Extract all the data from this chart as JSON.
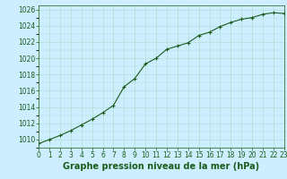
{
  "x": [
    0,
    1,
    2,
    3,
    4,
    5,
    6,
    7,
    8,
    9,
    10,
    11,
    12,
    13,
    14,
    15,
    16,
    17,
    18,
    19,
    20,
    21,
    22,
    23
  ],
  "y": [
    1009.5,
    1010.0,
    1010.5,
    1011.1,
    1011.8,
    1012.5,
    1013.3,
    1014.2,
    1016.5,
    1017.5,
    1019.3,
    1020.0,
    1021.1,
    1021.5,
    1021.9,
    1022.8,
    1023.2,
    1023.9,
    1024.4,
    1024.8,
    1025.0,
    1025.4,
    1025.6,
    1025.5
  ],
  "xlim": [
    0,
    23
  ],
  "ylim": [
    1009,
    1026.5
  ],
  "yticks": [
    1010,
    1012,
    1014,
    1016,
    1018,
    1020,
    1022,
    1024,
    1026
  ],
  "xticks": [
    0,
    1,
    2,
    3,
    4,
    5,
    6,
    7,
    8,
    9,
    10,
    11,
    12,
    13,
    14,
    15,
    16,
    17,
    18,
    19,
    20,
    21,
    22,
    23
  ],
  "xlabel": "Graphe pression niveau de la mer (hPa)",
  "line_color": "#1a5c1a",
  "marker": "+",
  "marker_size": 3.5,
  "bg_color": "#cceeff",
  "grid_color": "#aaddcc",
  "tick_fontsize": 5.5,
  "xlabel_fontsize": 7,
  "line_width": 0.8
}
